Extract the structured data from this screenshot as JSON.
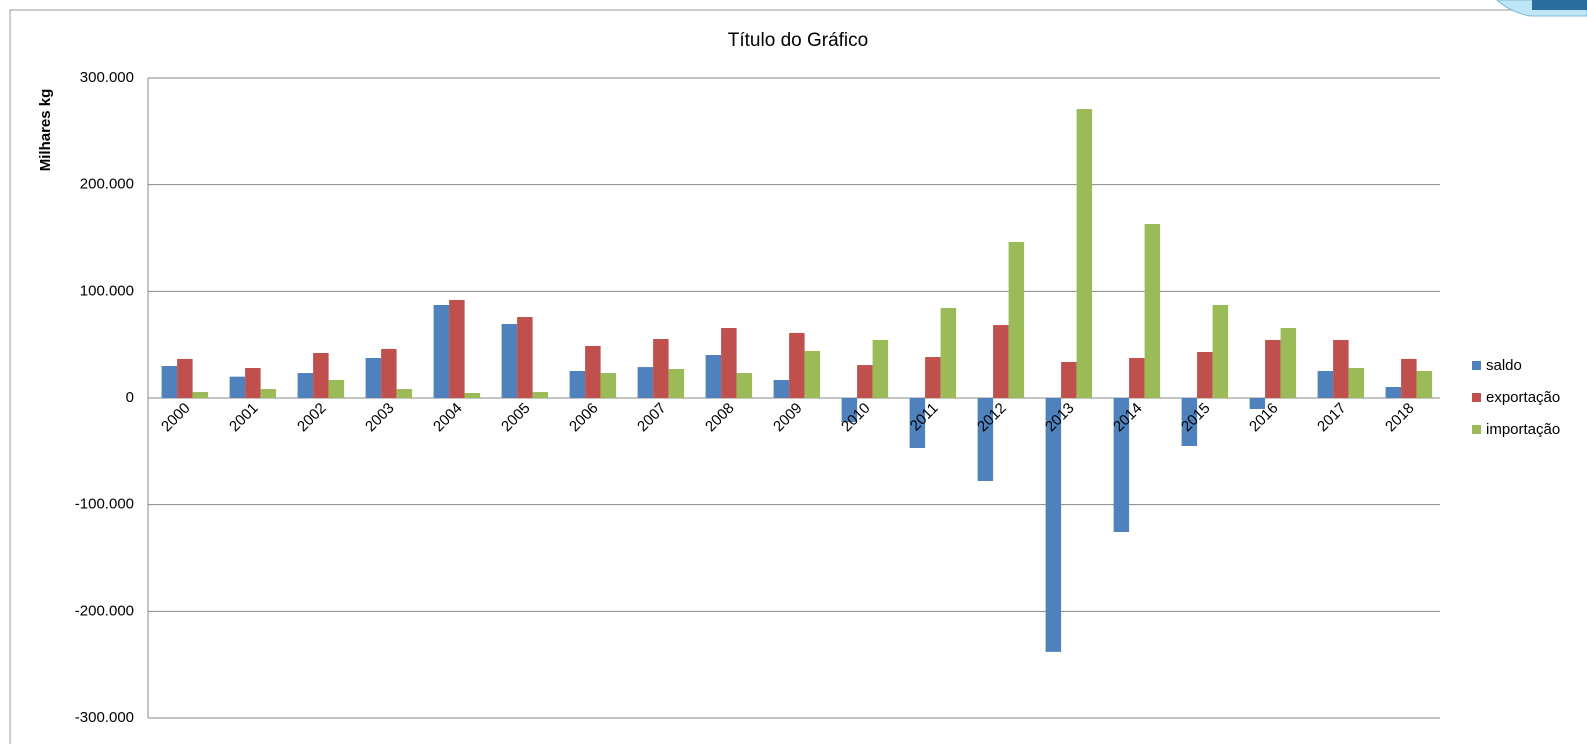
{
  "chart_data": {
    "type": "bar",
    "title": "Título do Gráfico",
    "y_label": "Milhares kg",
    "categories": [
      "2000",
      "2001",
      "2002",
      "2003",
      "2004",
      "2005",
      "2006",
      "2007",
      "2008",
      "2009",
      "2010",
      "2011",
      "2012",
      "2013",
      "2014",
      "2015",
      "2016",
      "2017",
      "2018"
    ],
    "series": [
      {
        "name": "saldo",
        "color": "#4f81bd",
        "values": [
          30000,
          20000,
          23400,
          37500,
          87200,
          69400,
          25300,
          29000,
          40300,
          16900,
          -22500,
          -46900,
          -77800,
          -238000,
          -125600,
          -45000,
          -10300,
          25300,
          10300
        ]
      },
      {
        "name": "exportação",
        "color": "#c0504d",
        "values": [
          36600,
          28100,
          42200,
          46000,
          91900,
          75900,
          48800,
          55300,
          65600,
          61000,
          30900,
          38400,
          68400,
          33800,
          37500,
          43100,
          54400,
          54400,
          36600
        ]
      },
      {
        "name": "importação",
        "color": "#9bbb59",
        "values": [
          5600,
          8400,
          16900,
          8400,
          4700,
          5600,
          23400,
          27200,
          23400,
          44100,
          54400,
          84400,
          146300,
          270900,
          163100,
          87200,
          65600,
          28100,
          25300
        ]
      }
    ],
    "ylim": [
      -300000,
      300000
    ],
    "yticks": [
      {
        "value": -300000,
        "label": "-300.000"
      },
      {
        "value": -200000,
        "label": "-200.000"
      },
      {
        "value": -100000,
        "label": "-100.000"
      },
      0,
      {
        "value": 100000,
        "label": "100.000"
      },
      {
        "value": 200000,
        "label": "200.000"
      },
      {
        "value": 300000,
        "label": "300.000"
      }
    ],
    "grid": true,
    "legend": "right"
  }
}
